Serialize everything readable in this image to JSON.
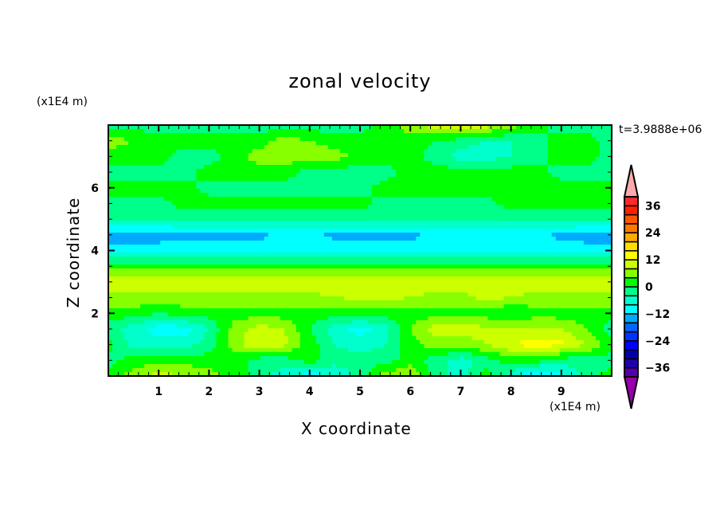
{
  "chart_data": {
    "type": "heatmap",
    "title": "zonal velocity",
    "xlabel": "X coordinate",
    "ylabel": "Z coordinate",
    "x_units": "(x1E4 m)",
    "y_units": "(x1E4 m)",
    "time_label": "t=3.9888e+06",
    "xlim": [
      0,
      10
    ],
    "ylim": [
      0,
      8
    ],
    "x_ticks": [
      1,
      2,
      3,
      4,
      5,
      6,
      7,
      8,
      9
    ],
    "y_ticks": [
      2,
      4,
      6
    ],
    "x_tick_labels": [
      "1",
      "2",
      "3",
      "4",
      "5",
      "6",
      "7",
      "8",
      "9"
    ],
    "y_tick_labels": [
      "2",
      "4",
      "6"
    ],
    "grid_x": [
      0,
      0.5,
      1,
      1.5,
      2,
      2.5,
      3,
      3.5,
      4,
      4.5,
      5,
      5.5,
      6,
      6.5,
      7,
      7.5,
      8,
      8.5,
      9,
      9.5,
      10
    ],
    "grid_z_top_to_bottom": [
      8,
      7.5,
      7,
      6.5,
      6,
      5.5,
      5,
      4.5,
      4,
      3.5,
      3,
      2.5,
      2,
      1.5,
      1,
      0.5,
      0
    ],
    "values": [
      [
        -2,
        -2,
        -2,
        -2,
        -2,
        -2,
        -2,
        -2,
        -2,
        -2,
        -2,
        2,
        6,
        10,
        13,
        10,
        6,
        2,
        -2,
        -2,
        -2
      ],
      [
        6,
        4,
        2,
        2,
        2,
        2,
        2,
        6,
        4,
        2,
        2,
        2,
        2,
        0,
        -2,
        -4,
        -4,
        -2,
        2,
        2,
        -2
      ],
      [
        2,
        2,
        2,
        -2,
        -2,
        2,
        6,
        6,
        7,
        6,
        2,
        2,
        2,
        -2,
        -6,
        -6,
        -4,
        -2,
        2,
        2,
        -2
      ],
      [
        -2,
        -2,
        -2,
        -2,
        2,
        2,
        2,
        2,
        -2,
        -2,
        -2,
        -2,
        2,
        2,
        2,
        2,
        2,
        2,
        -2,
        -2,
        -2
      ],
      [
        2,
        2,
        2,
        2,
        -2,
        -2,
        -2,
        -2,
        -2,
        -2,
        -2,
        2,
        2,
        2,
        2,
        2,
        2,
        2,
        2,
        2,
        2
      ],
      [
        -2,
        -2,
        -2,
        2,
        2,
        2,
        2,
        2,
        2,
        2,
        2,
        -2,
        -2,
        -2,
        -2,
        -2,
        2,
        2,
        2,
        2,
        2
      ],
      [
        -3,
        -3,
        -3,
        -3,
        -3,
        -3,
        -3,
        -3,
        -3,
        -3,
        -3,
        -3,
        -3,
        -3,
        -3,
        -3,
        -3,
        -3,
        -3,
        -3,
        -3
      ],
      [
        -14,
        -14,
        -14,
        -13,
        -13,
        -13,
        -13,
        -11,
        -11,
        -13,
        -13,
        -13,
        -13,
        -11,
        -10,
        -11,
        -11,
        -11,
        -13,
        -14,
        -14
      ],
      [
        -10,
        -10,
        -10,
        -10,
        -10,
        -10,
        -10,
        -10,
        -10,
        -10,
        -10,
        -10,
        -10,
        -10,
        -10,
        -10,
        -10,
        -10,
        -10,
        -10,
        -10
      ],
      [
        2,
        2,
        2,
        2,
        2,
        2,
        2,
        2,
        2,
        2,
        2,
        2,
        2,
        2,
        2,
        2,
        2,
        2,
        2,
        2,
        2
      ],
      [
        10,
        10,
        10,
        10,
        10,
        10,
        10,
        10,
        10,
        10,
        10,
        10,
        10,
        10,
        10,
        10,
        10,
        10,
        10,
        10,
        10
      ],
      [
        7,
        7,
        7,
        7,
        7,
        7,
        7,
        7,
        7,
        8,
        9,
        9,
        8,
        7,
        7,
        9,
        8,
        7,
        7,
        7,
        7
      ],
      [
        2,
        2,
        0,
        2,
        2,
        2,
        2,
        2,
        2,
        2,
        2,
        2,
        2,
        2,
        2,
        2,
        0,
        2,
        2,
        2,
        2
      ],
      [
        -2,
        -6,
        -10,
        -10,
        -4,
        6,
        10,
        8,
        0,
        -6,
        -10,
        -6,
        4,
        10,
        10,
        9,
        8,
        9,
        8,
        4,
        -2
      ],
      [
        2,
        -6,
        -6,
        -6,
        -2,
        6,
        12,
        9,
        2,
        -4,
        -6,
        -4,
        2,
        6,
        6,
        8,
        12,
        14,
        13,
        8,
        2
      ],
      [
        -2,
        2,
        2,
        2,
        2,
        2,
        -2,
        -2,
        2,
        -2,
        -2,
        -2,
        2,
        -2,
        -6,
        -2,
        2,
        2,
        -2,
        -2,
        -2
      ],
      [
        2,
        6,
        10,
        8,
        6,
        2,
        -2,
        -6,
        -10,
        -8,
        -2,
        6,
        8,
        -2,
        -6,
        2,
        -6,
        -14,
        -10,
        -2,
        2
      ]
    ],
    "levels": [
      -40,
      -36,
      -32,
      -28,
      -24,
      -20,
      -16,
      -12,
      -8,
      -4,
      0,
      4,
      8,
      12,
      16,
      20,
      24,
      28,
      32,
      36,
      40
    ],
    "level_colors_bottom_to_top": [
      "#5500aa",
      "#2200aa",
      "#0000aa",
      "#0000ff",
      "#0033ff",
      "#0066ff",
      "#00aaff",
      "#00ffff",
      "#00ffcc",
      "#00ff88",
      "#00ff00",
      "#88ff00",
      "#ccff00",
      "#ffff00",
      "#ffdd00",
      "#ffaa00",
      "#ff7700",
      "#ff5500",
      "#ff2000",
      "#ff2a2a"
    ],
    "over_color": "#ffaaaa",
    "under_color": "#9900aa",
    "colorbar_labels": [
      "36",
      "24",
      "12",
      "0",
      "-12",
      "-24",
      "-36"
    ],
    "colorbar_label_values": [
      36,
      24,
      12,
      0,
      -12,
      -24,
      -36
    ]
  }
}
